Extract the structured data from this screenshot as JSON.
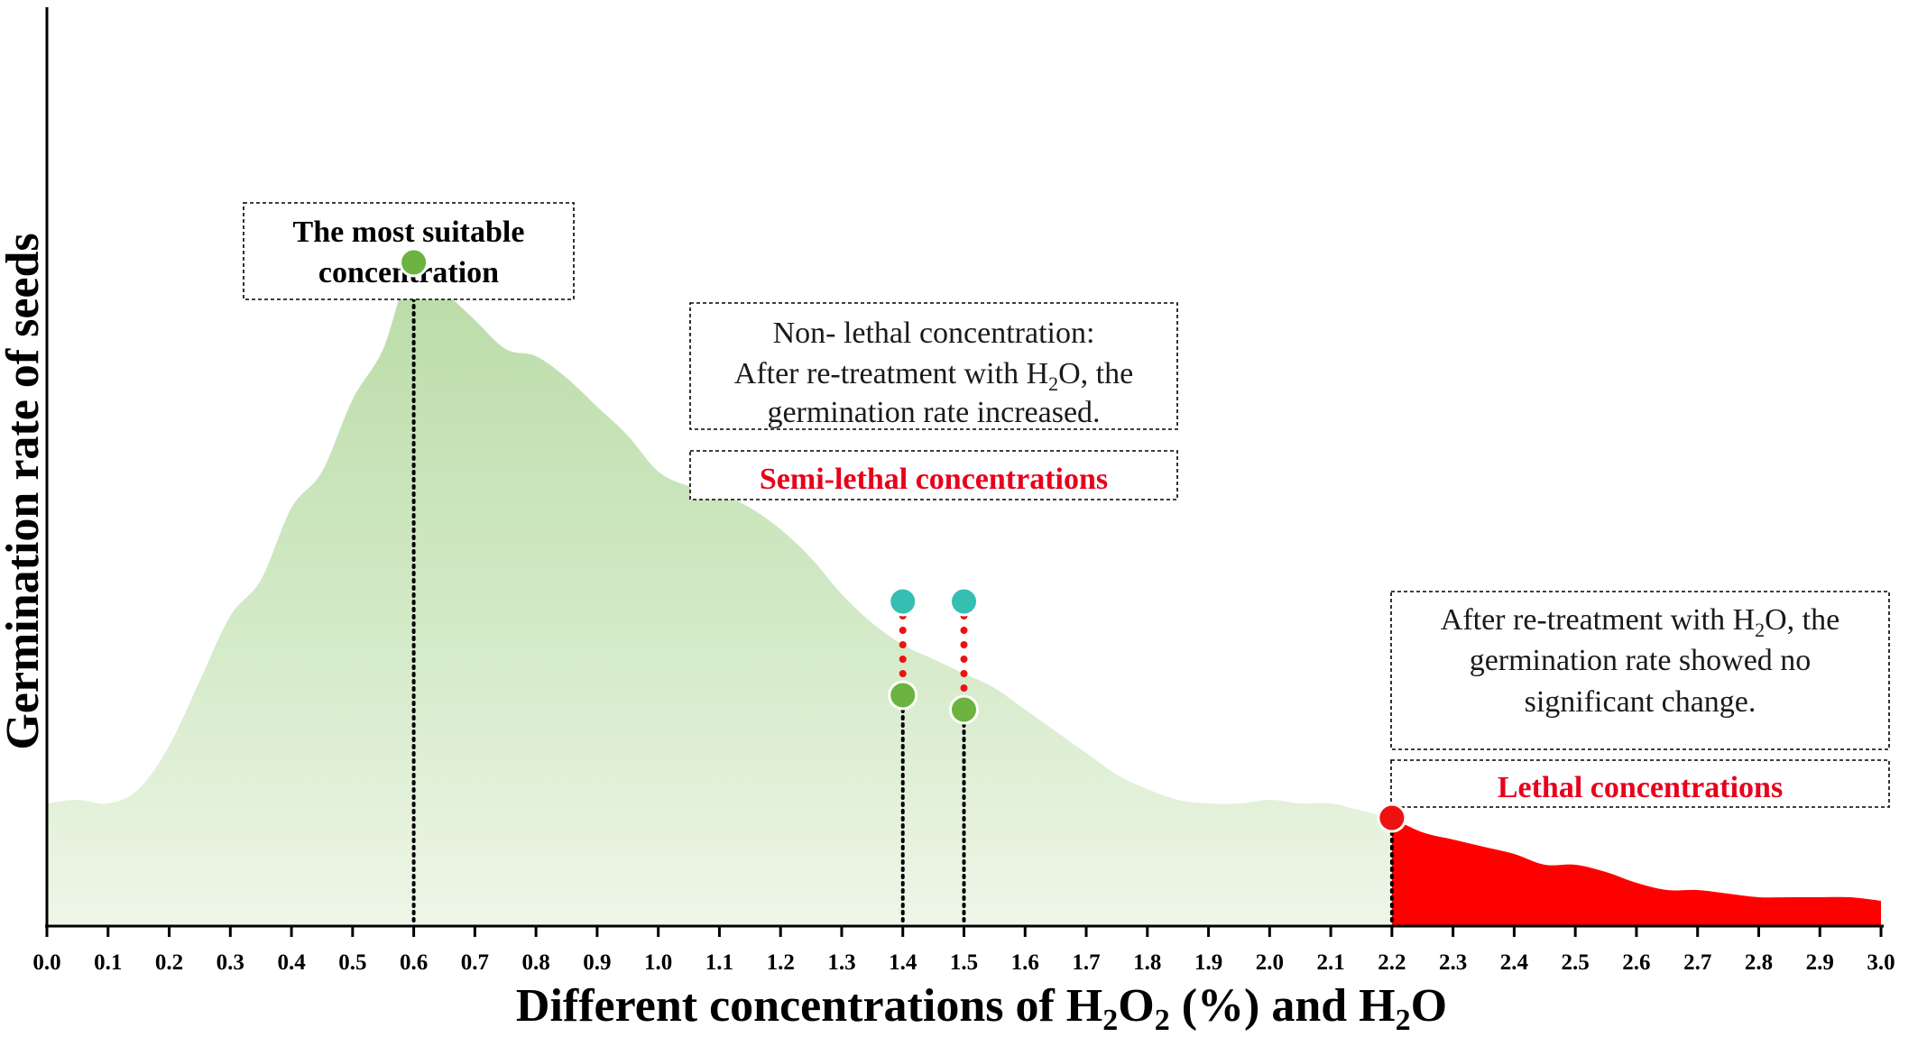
{
  "chart_data": {
    "type": "area",
    "x_ticks": [
      "0.0",
      "0.1",
      "0.2",
      "0.3",
      "0.4",
      "0.5",
      "0.6",
      "0.7",
      "0.8",
      "0.9",
      "1.0",
      "1.1",
      "1.2",
      "1.3",
      "1.4",
      "1.5",
      "1.6",
      "1.7",
      "1.8",
      "1.9",
      "2.0",
      "2.1",
      "2.2",
      "2.3",
      "2.4",
      "2.5",
      "2.6",
      "2.7",
      "2.8",
      "2.9",
      "3.0"
    ],
    "xlim": [
      0.0,
      3.0
    ],
    "ylim": [
      0,
      100
    ],
    "xlabel": {
      "pre": "Different concentrations of H",
      "sub1": "2",
      "mid1": "O",
      "sub2": "2",
      "mid2": " (%) and H",
      "sub3": "2",
      "post": "O"
    },
    "ylabel": "Germination rate of seeds",
    "grid": false,
    "series": [
      {
        "color": "#c2e0b2",
        "x": [
          0.0,
          0.05,
          0.1,
          0.15,
          0.2,
          0.25,
          0.3,
          0.35,
          0.4,
          0.45,
          0.5,
          0.55,
          0.6,
          0.65,
          0.7,
          0.75,
          0.8,
          0.85,
          0.9,
          0.95,
          1.0,
          1.05,
          1.1,
          1.15,
          1.2,
          1.25,
          1.3,
          1.35,
          1.4,
          1.45,
          1.5,
          1.55,
          1.6,
          1.65,
          1.7,
          1.75,
          1.8,
          1.85,
          1.9,
          1.95,
          2.0,
          2.05,
          2.1,
          2.15,
          2.2
        ],
        "y": [
          17,
          17.5,
          17,
          19,
          25,
          34,
          43,
          48,
          58,
          63,
          73,
          80,
          92,
          88,
          84,
          80,
          79,
          76,
          72,
          68,
          63,
          61,
          60,
          58,
          55,
          51,
          46,
          42,
          39,
          37,
          35,
          33,
          30,
          27,
          24,
          21,
          19,
          17.5,
          17,
          17,
          17.5,
          17,
          17,
          16,
          15
        ]
      },
      {
        "color": "#ff0000",
        "x": [
          2.2,
          2.25,
          2.3,
          2.35,
          2.4,
          2.45,
          2.5,
          2.55,
          2.6,
          2.65,
          2.7,
          2.75,
          2.8,
          2.85,
          2.9,
          2.95,
          3.0
        ],
        "y": [
          15,
          13,
          12,
          11,
          10,
          8.5,
          8.5,
          7.5,
          6,
          5,
          5,
          4.5,
          4,
          4,
          4,
          4,
          3.5
        ]
      }
    ],
    "points": [
      {
        "x": 0.6,
        "y": 92,
        "color": "#6cb33f"
      },
      {
        "x": 1.4,
        "y": 32,
        "color": "#6cb33f"
      },
      {
        "x": 1.5,
        "y": 30,
        "color": "#6cb33f"
      },
      {
        "x": 1.4,
        "y": 45,
        "color": "#35bfb3"
      },
      {
        "x": 1.5,
        "y": 45,
        "color": "#35bfb3"
      },
      {
        "x": 2.2,
        "y": 15,
        "color": "#ee1111"
      }
    ],
    "annotations": {
      "suitable": [
        "The most suitable",
        "concentration"
      ],
      "nonlethal": {
        "line1": "Non- lethal concentration:",
        "line2_pre": "After re-treatment with H",
        "line2_sub": "2",
        "line2_post": "O, the",
        "line3": "germination rate increased."
      },
      "semilethal": "Semi-lethal concentrations",
      "nochange": {
        "line1_pre": "After re-treatment with H",
        "line1_sub": "2",
        "line1_post": "O, the",
        "line2": "germination rate showed no",
        "line3": "significant change."
      },
      "lethal": "Lethal concentrations"
    }
  }
}
